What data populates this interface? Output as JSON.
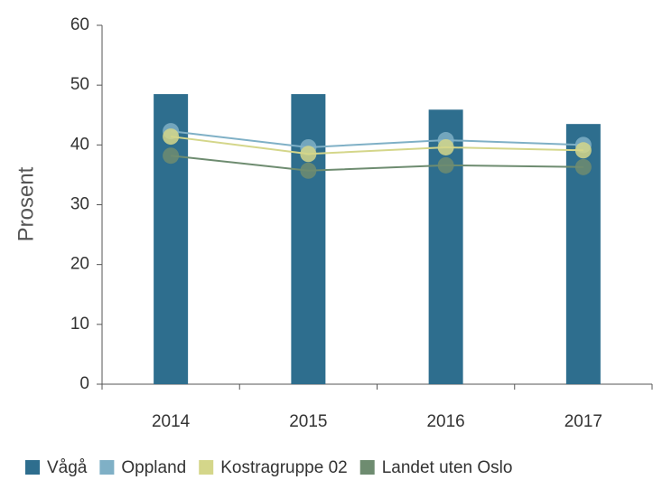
{
  "chart_data": {
    "type": "combo",
    "y_label": "Prosent",
    "categories": [
      "2014",
      "2015",
      "2016",
      "2017"
    ],
    "series": [
      {
        "name": "Vågå",
        "type": "bar",
        "color": "#2e6e8e",
        "values": [
          48.5,
          48.5,
          45.9,
          43.5
        ]
      },
      {
        "name": "Oppland",
        "type": "line",
        "color": "#7fb0c6",
        "values": [
          42.3,
          39.6,
          40.8,
          40.0
        ]
      },
      {
        "name": "Kostragruppe 02",
        "type": "line",
        "color": "#d4d68a",
        "values": [
          41.4,
          38.5,
          39.6,
          39.1
        ]
      },
      {
        "name": "Landet uten Oslo",
        "type": "line",
        "color": "#6e8c70",
        "values": [
          38.2,
          35.7,
          36.6,
          36.3
        ]
      }
    ],
    "ylim": [
      0,
      60
    ],
    "yticks": [
      0,
      10,
      20,
      30,
      40,
      50,
      60
    ],
    "legend": "bottom"
  }
}
